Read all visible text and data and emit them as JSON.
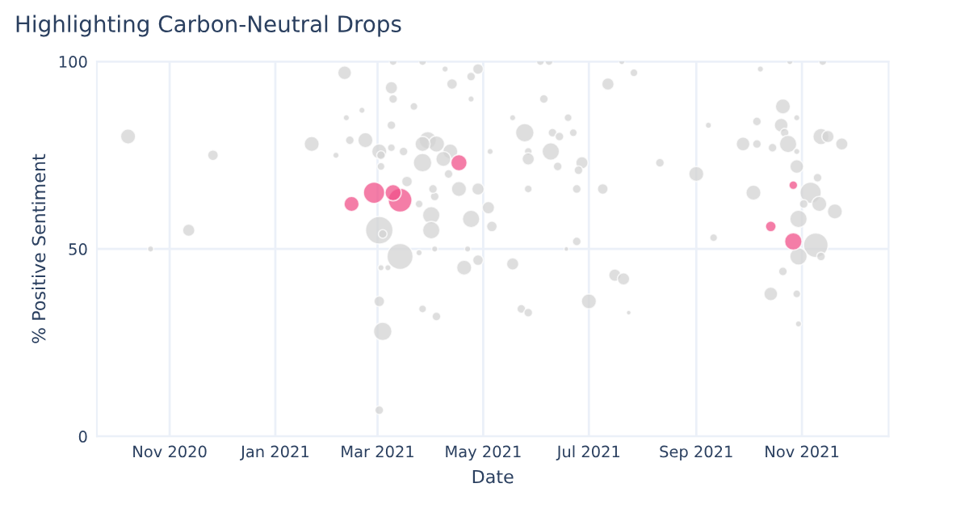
{
  "chart_data": {
    "type": "bubble",
    "title": "Highlighting Carbon-Neutral Drops",
    "xlabel": "Date",
    "ylabel": "% Positive Sentiment",
    "xlim": [
      "2020-09-20",
      "2021-12-21"
    ],
    "xticks": [
      {
        "value": "2020-11-01",
        "label": "Nov 2020"
      },
      {
        "value": "2021-01-01",
        "label": "Jan 2021"
      },
      {
        "value": "2021-03-01",
        "label": "Mar 2021"
      },
      {
        "value": "2021-05-01",
        "label": "May 2021"
      },
      {
        "value": "2021-07-01",
        "label": "Jul 2021"
      },
      {
        "value": "2021-09-01",
        "label": "Sep 2021"
      },
      {
        "value": "2021-11-01",
        "label": "Nov 2021"
      }
    ],
    "ylim": [
      0,
      100
    ],
    "yticks": [
      0,
      50,
      100
    ],
    "grid": true,
    "marker": "circle",
    "series": [
      {
        "color": "#d3d3d3",
        "x": [
          "2020-10-08",
          "2020-10-21",
          "2020-11-12",
          "2020-11-26",
          "2021-01-22",
          "2021-02-10",
          "2021-02-05",
          "2021-02-11",
          "2021-02-20",
          "2021-02-13",
          "2021-02-22",
          "2021-03-02",
          "2021-03-09",
          "2021-03-10",
          "2021-03-09",
          "2021-03-02",
          "2021-03-03",
          "2021-03-09",
          "2021-03-16",
          "2021-03-22",
          "2021-03-27",
          "2021-04-09",
          "2021-04-13",
          "2021-04-24",
          "2021-04-28",
          "2021-04-24",
          "2021-03-30",
          "2021-04-04",
          "2021-03-27",
          "2021-04-12",
          "2021-04-08",
          "2021-03-27",
          "2021-03-03",
          "2021-04-11",
          "2021-03-18",
          "2021-03-02",
          "2021-03-04",
          "2021-03-14",
          "2021-03-03",
          "2021-03-07",
          "2021-03-02",
          "2021-03-04",
          "2021-04-01",
          "2021-04-01",
          "2021-04-03",
          "2021-04-02",
          "2021-03-25",
          "2021-04-24",
          "2021-04-20",
          "2021-04-28",
          "2021-04-17",
          "2021-04-28",
          "2021-05-04",
          "2021-05-06",
          "2021-04-22",
          "2021-04-03",
          "2021-03-25",
          "2021-03-27",
          "2021-04-04",
          "2021-05-18",
          "2021-05-25",
          "2021-05-18",
          "2021-05-05",
          "2021-05-27",
          "2021-05-27",
          "2021-06-09",
          "2021-06-13",
          "2021-06-05",
          "2021-06-10",
          "2021-06-14",
          "2021-06-22",
          "2021-06-19",
          "2021-06-27",
          "2021-06-25",
          "2021-05-27",
          "2021-06-24",
          "2021-07-09",
          "2021-06-24",
          "2021-06-18",
          "2021-05-23",
          "2021-05-27",
          "2021-07-01",
          "2021-07-16",
          "2021-07-21",
          "2021-07-24",
          "2021-07-12",
          "2021-07-27",
          "2021-06-03",
          "2021-06-08",
          "2021-07-20",
          "2021-08-11",
          "2021-09-01",
          "2021-09-08",
          "2021-09-11",
          "2021-10-08",
          "2021-09-28",
          "2021-10-06",
          "2021-10-06",
          "2021-10-15",
          "2021-10-21",
          "2021-10-20",
          "2021-10-22",
          "2021-10-24",
          "2021-10-29",
          "2021-10-29",
          "2021-10-29",
          "2021-10-04",
          "2021-11-06",
          "2021-11-10",
          "2021-11-11",
          "2021-11-20",
          "2021-11-02",
          "2021-10-30",
          "2021-11-09",
          "2021-10-30",
          "2021-11-12",
          "2021-11-12",
          "2021-11-16",
          "2021-11-24",
          "2021-10-21",
          "2021-10-14",
          "2021-10-29",
          "2021-10-30",
          "2021-11-13",
          "2021-10-25",
          "2021-03-10"
        ],
        "values": [
          80,
          50,
          55,
          75,
          78,
          97,
          75,
          85,
          87,
          79,
          79,
          7,
          93,
          90,
          83,
          76,
          75,
          77,
          76,
          88,
          100,
          98,
          94,
          96,
          98,
          90,
          79,
          78,
          78,
          76,
          74,
          73,
          72,
          70,
          68,
          55,
          54,
          48,
          45,
          45,
          36,
          28,
          59,
          55,
          64,
          66,
          62,
          58,
          45,
          47,
          66,
          66,
          61,
          56,
          50,
          50,
          49,
          34,
          32,
          46,
          81,
          85,
          76,
          76,
          74,
          76,
          72,
          90,
          81,
          80,
          81,
          85,
          73,
          71,
          66,
          66,
          66,
          52,
          50,
          34,
          33,
          36,
          43,
          42,
          33,
          94,
          97,
          100,
          100,
          100,
          73,
          70,
          83,
          53,
          98,
          78,
          84,
          78,
          77,
          88,
          83,
          81,
          78,
          85,
          76,
          72,
          65,
          65,
          69,
          62,
          60,
          62,
          58,
          51,
          48,
          48,
          80,
          80,
          78,
          44,
          38,
          38,
          30,
          100,
          100,
          100
        ],
        "sizes": [
          0.3,
          0.05,
          0.2,
          0.15,
          0.3,
          0.25,
          0.05,
          0.05,
          0.05,
          0.1,
          0.3,
          0.1,
          0.2,
          0.1,
          0.1,
          0.3,
          0.1,
          0.08,
          0.1,
          0.08,
          0.08,
          0.05,
          0.15,
          0.1,
          0.15,
          0.05,
          0.4,
          0.35,
          0.3,
          0.3,
          0.3,
          0.45,
          0.08,
          0.1,
          0.15,
          1,
          0.1,
          0.9,
          0.05,
          0.05,
          0.15,
          0.45,
          0.4,
          0.4,
          0.1,
          0.1,
          0.08,
          0.4,
          0.3,
          0.15,
          0.3,
          0.2,
          0.2,
          0.15,
          0.05,
          0.05,
          0.05,
          0.08,
          0.1,
          0.2,
          0.45,
          0.05,
          0.05,
          0.08,
          0.2,
          0.4,
          0.1,
          0.1,
          0.1,
          0.1,
          0.08,
          0.08,
          0.2,
          0.1,
          0.08,
          0.1,
          0.15,
          0.1,
          0.03,
          0.1,
          0.1,
          0.3,
          0.2,
          0.2,
          0.03,
          0.2,
          0.08,
          0.08,
          0.08,
          0.05,
          0.1,
          0.3,
          0.05,
          0.08,
          0.05,
          0.25,
          0.1,
          0.1,
          0.1,
          0.3,
          0.25,
          0.1,
          0.4,
          0.05,
          0.05,
          0.25,
          0.3,
          0.6,
          0.1,
          0.3,
          0.3,
          0.1,
          0.4,
          0.8,
          0.4,
          0.1,
          0.35,
          0.2,
          0.2,
          0.1,
          0.25,
          0.08,
          0.05,
          0.08,
          0.05,
          0.08
        ]
      },
      {
        "color": "#f0528a",
        "x": [
          "2021-02-14",
          "2021-02-27",
          "2021-03-14",
          "2021-03-10",
          "2021-04-17",
          "2021-10-27",
          "2021-10-14",
          "2021-10-27"
        ],
        "values": [
          62,
          65,
          63,
          65,
          73,
          67,
          56,
          52
        ],
        "sizes": [
          0.3,
          0.6,
          0.75,
          0.35,
          0.35,
          0.1,
          0.15,
          0.4
        ]
      }
    ]
  }
}
